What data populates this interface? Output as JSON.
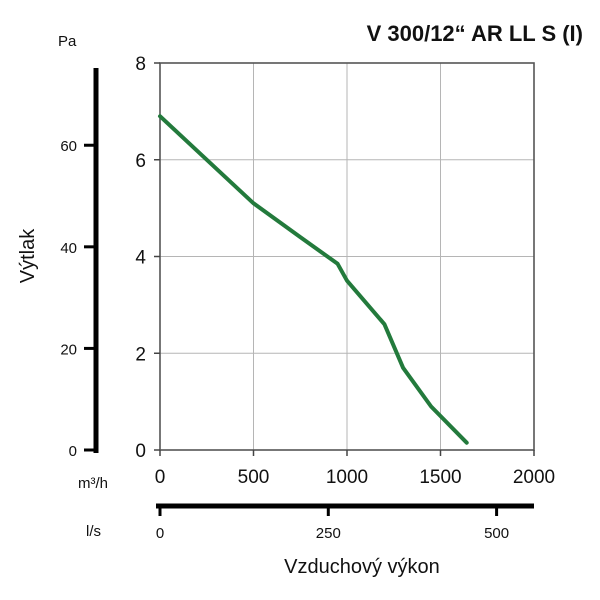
{
  "chart_data": {
    "type": "line",
    "title": "V 300/12“ AR LL S (I)",
    "ylabel": "Výtlak",
    "xlabel": "Vzduchový výkon",
    "left_axis_unit": "Pa",
    "left_axis_ticks": [
      "0",
      "20",
      "40",
      "60"
    ],
    "left_axis_values": [
      0,
      20,
      40,
      60
    ],
    "y_ticks": [
      "0",
      "2",
      "4",
      "6",
      "8"
    ],
    "ylim": [
      0,
      8
    ],
    "x_unit": "m³/h",
    "x_ticks": [
      "0",
      "500",
      "1000",
      "1500",
      "2000"
    ],
    "xlim": [
      0,
      2000
    ],
    "x2_unit": "l/s",
    "x2_ticks": [
      "0",
      "250",
      "500"
    ],
    "x2_values": [
      0,
      250,
      500
    ],
    "grid": true,
    "line_color": "#237a3c",
    "series": [
      {
        "x": [
          0,
          250,
          500,
          750,
          950,
          1000,
          1200,
          1300,
          1450,
          1640
        ],
        "values": [
          6.9,
          6.0,
          5.1,
          4.4,
          3.85,
          3.5,
          2.6,
          1.7,
          0.9,
          0.15
        ]
      }
    ]
  }
}
